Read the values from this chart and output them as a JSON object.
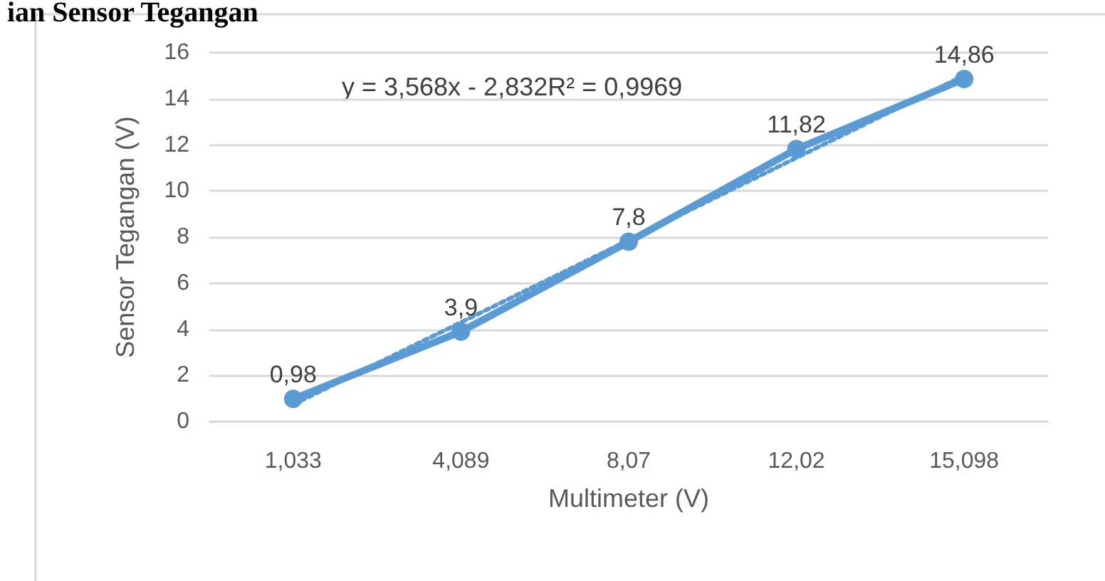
{
  "chart_data": {
    "type": "line",
    "title": "ian Sensor Tegangan",
    "xlabel": "Multimeter (V)",
    "ylabel": "Sensor Tegangan (V)",
    "categories": [
      "1,033",
      "4,089",
      "8,07",
      "12,02",
      "15,098"
    ],
    "series": [
      {
        "color": "#5b9bd5",
        "values": [
          0.98,
          3.9,
          7.8,
          11.82,
          14.86
        ],
        "value_labels": [
          "0,98",
          "3,9",
          "7,8",
          "11,82",
          "14,86"
        ],
        "marker": "circle",
        "line_style": "solid"
      },
      {
        "color": "#5b9bd5",
        "values": [
          0.74,
          4.3,
          7.87,
          11.44,
          15.01
        ],
        "marker": "none",
        "line_style": "dotted"
      }
    ],
    "annotations": [
      "y = 3,568x - 2,832R² = 0,9969"
    ],
    "ylim": [
      0,
      16
    ],
    "yticks": [
      0,
      2,
      4,
      6,
      8,
      10,
      12,
      14,
      16
    ],
    "grid": "y"
  }
}
